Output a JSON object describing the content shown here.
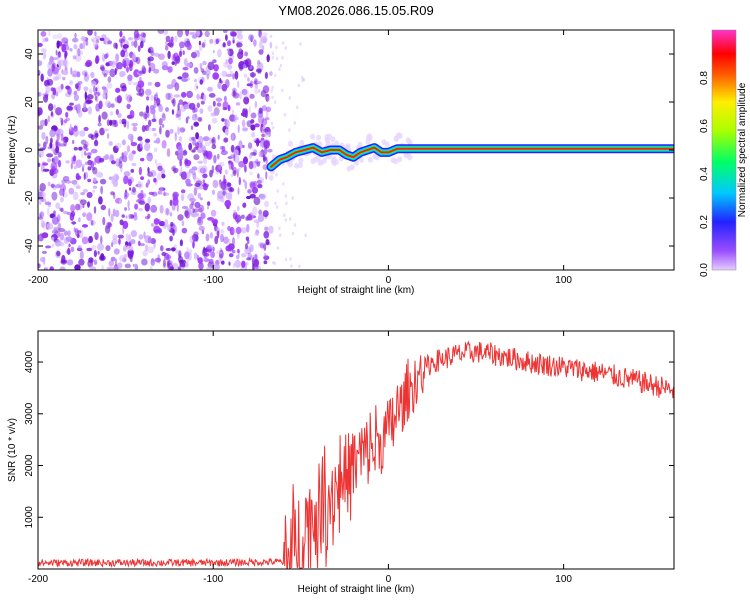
{
  "title": "YM08.2026.086.15.05.R09",
  "colors": {
    "snr_line": "#ee3333",
    "noise": "#8a2be2",
    "frame": "#000000"
  },
  "chart_data": [
    {
      "type": "heatmap",
      "title": "YM08.2026.086.15.05.R09",
      "xlabel": "Height of straight line (km)",
      "ylabel": "Frequency (Hz)",
      "xlim": [
        -200,
        163
      ],
      "ylim": [
        -50,
        50
      ],
      "x_ticks": [
        -200,
        -100,
        0,
        100
      ],
      "x_tick_labels": [
        "-200",
        "-100",
        "0",
        "100"
      ],
      "y_ticks": [
        -40,
        -20,
        0,
        20,
        40
      ],
      "y_tick_labels": [
        "-40",
        "-20",
        "0",
        "20",
        "40"
      ],
      "colorbar": {
        "label": "Normalized spectral amplitude",
        "range": [
          0,
          1
        ],
        "ticks": [
          0,
          0.2,
          0.4,
          0.6,
          0.8
        ],
        "tick_labels": [
          "0.0",
          "0.2",
          "0.4",
          "0.6",
          "0.8"
        ],
        "colormap": "rainbow (purple-blue-cyan-green-yellow-red-magenta)"
      },
      "noise_region_x": [
        -200,
        -67
      ],
      "signal_trace": {
        "x": [
          -67,
          -62,
          -58,
          -53,
          -48,
          -43,
          -38,
          -33,
          -28,
          -24,
          -20,
          -16,
          -12,
          -8,
          -4,
          0,
          5,
          10,
          163
        ],
        "y": [
          -7,
          -4,
          -3,
          -1,
          0,
          1,
          -1,
          0,
          0,
          -2,
          -3,
          -1,
          0,
          1,
          -1,
          -1,
          0.5,
          0.5,
          0.5
        ]
      }
    },
    {
      "type": "line",
      "xlabel": "Height of straight line (km)",
      "ylabel": "SNR (10 * v/v)",
      "xlim": [
        -200,
        163
      ],
      "ylim": [
        0,
        4600
      ],
      "x_ticks": [
        -200,
        -100,
        0,
        100
      ],
      "x_tick_labels": [
        "-200",
        "-100",
        "0",
        "100"
      ],
      "y_ticks": [
        1000,
        2000,
        3000,
        4000
      ],
      "y_tick_labels": [
        "1000",
        "2000",
        "3000",
        "4000"
      ],
      "series": [
        {
          "name": "SNR",
          "x": [
            -200,
            -150,
            -100,
            -60,
            -55,
            -50,
            -45,
            -40,
            -35,
            -30,
            -25,
            -20,
            -15,
            -10,
            -5,
            0,
            5,
            10,
            15,
            20,
            25,
            30,
            40,
            50,
            60,
            80,
            100,
            120,
            140,
            163
          ],
          "y": [
            120,
            120,
            120,
            140,
            200,
            700,
            900,
            1100,
            1300,
            1600,
            1800,
            2000,
            2200,
            2300,
            2400,
            2700,
            3000,
            3300,
            3600,
            3850,
            4000,
            4050,
            4150,
            4200,
            4150,
            4000,
            3900,
            3800,
            3650,
            3450
          ]
        }
      ]
    }
  ]
}
